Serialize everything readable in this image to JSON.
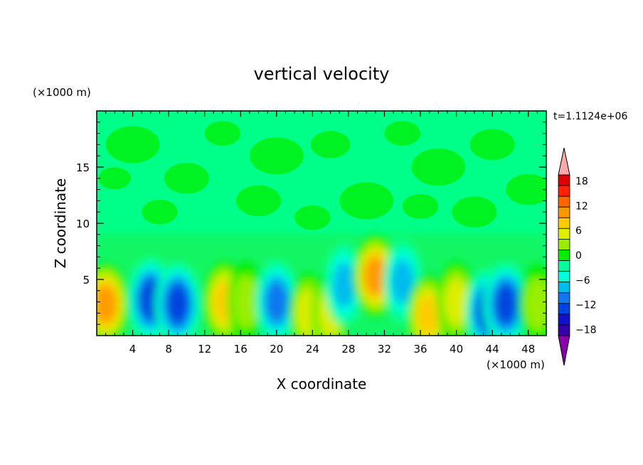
{
  "chart_data": {
    "type": "heatmap",
    "title": "vertical velocity",
    "time_label": "t=1.1124e+06",
    "xlabel": "X coordinate",
    "ylabel": "Z coordinate",
    "x_unit": "(×1000 m)",
    "y_unit": "(×1000 m)",
    "x_range": [
      0,
      50
    ],
    "y_range": [
      0,
      20
    ],
    "x_ticks": [
      4,
      8,
      12,
      16,
      20,
      24,
      28,
      32,
      36,
      40,
      44,
      48
    ],
    "y_ticks": [
      5,
      10,
      15
    ],
    "colorbar": {
      "labels": [
        18,
        12,
        6,
        0,
        -6,
        -12,
        -18
      ],
      "levels": [
        -21,
        -18,
        -15,
        -12,
        -9,
        -6,
        -3,
        0,
        3,
        6,
        9,
        12,
        15,
        18,
        21
      ],
      "colors": [
        "#8800aa",
        "#3300aa",
        "#1111cc",
        "#0044dd",
        "#1177ee",
        "#00bbee",
        "#00ffdd",
        "#00ff99",
        "#00ee00",
        "#99ee00",
        "#ddee00",
        "#ffcc00",
        "#ff9900",
        "#ff6600",
        "#ff2200",
        "#dd0000",
        "#ffaaaa"
      ]
    },
    "features": [
      {
        "x": 1.0,
        "z": 2.8,
        "value": 12
      },
      {
        "x": 6.0,
        "z": 3.2,
        "value": -13
      },
      {
        "x": 9.0,
        "z": 2.8,
        "value": -12
      },
      {
        "x": 14.2,
        "z": 3.0,
        "value": 9
      },
      {
        "x": 16.6,
        "z": 3.0,
        "value": 4
      },
      {
        "x": 20.0,
        "z": 3.0,
        "value": -9
      },
      {
        "x": 23.5,
        "z": 2.0,
        "value": 5
      },
      {
        "x": 26.0,
        "z": 2.0,
        "value": 5
      },
      {
        "x": 27.5,
        "z": 4.5,
        "value": -5
      },
      {
        "x": 31.0,
        "z": 5.3,
        "value": 12
      },
      {
        "x": 34.0,
        "z": 4.8,
        "value": -5
      },
      {
        "x": 36.8,
        "z": 1.8,
        "value": 8
      },
      {
        "x": 40.0,
        "z": 3.0,
        "value": 6
      },
      {
        "x": 43.5,
        "z": 2.2,
        "value": -13
      },
      {
        "x": 45.5,
        "z": 2.8,
        "value": -12
      },
      {
        "x": 49.0,
        "z": 2.8,
        "value": 4
      }
    ]
  }
}
